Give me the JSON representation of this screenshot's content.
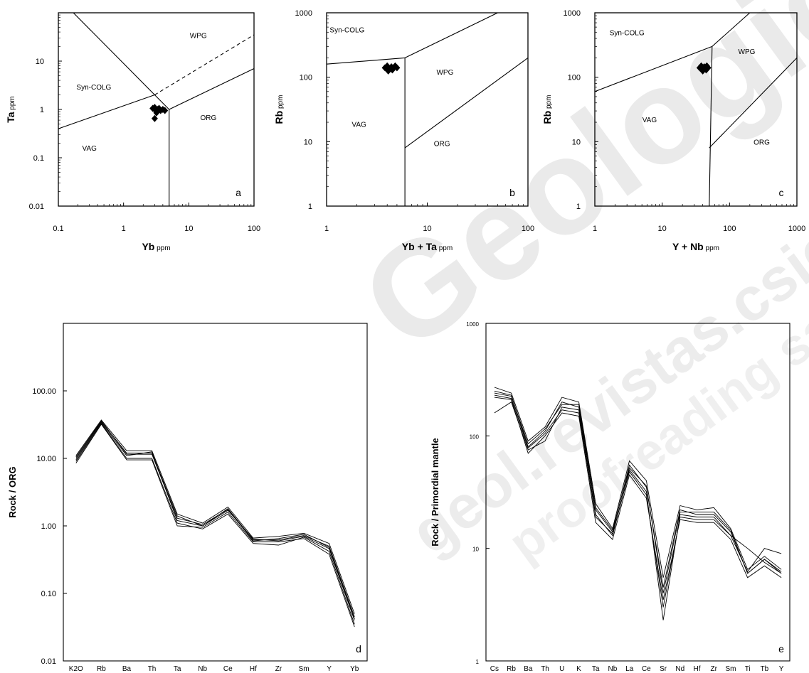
{
  "watermark": {
    "line1": "Geologica",
    "line2": "geol.revistas.csic.es",
    "line3": "proofreading sample",
    "color": "#000000"
  },
  "chart_data": [
    {
      "panel": "a",
      "type": "scatter",
      "xlabel": "Yb",
      "xunit": "ppm",
      "ylabel": "Ta",
      "yunit": "ppm",
      "xscale": "log",
      "yscale": "log",
      "xlim": [
        0.1,
        100
      ],
      "ylim": [
        0.01,
        100
      ],
      "xticks": [
        0.1,
        1,
        10,
        100
      ],
      "xtick_labels": [
        "0.1",
        "1",
        "10",
        "100"
      ],
      "yticks": [
        0.01,
        0.1,
        1,
        10
      ],
      "ytick_labels": [
        "0.01",
        "0.1",
        "1",
        "10"
      ],
      "grid": false,
      "fields": [
        "WPG",
        "Syn-COLG",
        "VAG",
        "ORG"
      ],
      "field_positions": [
        [
          14,
          30
        ],
        [
          0.35,
          2.6
        ],
        [
          0.3,
          0.14
        ],
        [
          20,
          0.6
        ]
      ],
      "boundaries": [
        {
          "points": [
            [
              0.17,
              100
            ],
            [
              3,
              2
            ]
          ],
          "style": "solid"
        },
        {
          "points": [
            [
              0.1,
              0.4
            ],
            [
              3,
              2
            ]
          ],
          "style": "solid"
        },
        {
          "points": [
            [
              3,
              2
            ],
            [
              5,
              1
            ]
          ],
          "style": "solid"
        },
        {
          "points": [
            [
              3,
              2
            ],
            [
              100,
              35
            ]
          ],
          "style": "dashed"
        },
        {
          "points": [
            [
              5,
              1
            ],
            [
              100,
              7
            ]
          ],
          "style": "solid"
        },
        {
          "points": [
            [
              5,
              1
            ],
            [
              5,
              0.01
            ]
          ],
          "style": "solid"
        }
      ],
      "points": [
        [
          2.8,
          1.05
        ],
        [
          3.0,
          1.1
        ],
        [
          3.1,
          0.95
        ],
        [
          3.3,
          1.0
        ],
        [
          3.5,
          1.05
        ],
        [
          3.7,
          0.95
        ],
        [
          4.0,
          1.0
        ],
        [
          4.3,
          0.95
        ],
        [
          3.2,
          0.85
        ],
        [
          3.0,
          0.65
        ]
      ],
      "label": "a"
    },
    {
      "panel": "b",
      "type": "scatter",
      "xlabel": "Yb + Ta",
      "xunit": "ppm",
      "ylabel": "Rb",
      "yunit": "ppm",
      "xscale": "log",
      "yscale": "log",
      "xlim": [
        1,
        100
      ],
      "ylim": [
        1,
        1000
      ],
      "xticks": [
        1,
        10,
        100
      ],
      "xtick_labels": [
        "1",
        "10",
        "100"
      ],
      "yticks": [
        1,
        10,
        100,
        1000
      ],
      "ytick_labels": [
        "1",
        "10",
        "100",
        "1000"
      ],
      "grid": false,
      "fields": [
        "Syn-COLG",
        "WPG",
        "VAG",
        "ORG"
      ],
      "field_positions": [
        [
          1.6,
          500
        ],
        [
          15,
          110
        ],
        [
          2.1,
          17
        ],
        [
          14,
          8.5
        ]
      ],
      "boundaries": [
        {
          "points": [
            [
              1,
              160
            ],
            [
              6,
              200
            ]
          ],
          "style": "solid"
        },
        {
          "points": [
            [
              6,
              200
            ],
            [
              50,
              1000
            ]
          ],
          "style": "solid"
        },
        {
          "points": [
            [
              6,
              200
            ],
            [
              6,
              1
            ]
          ],
          "style": "solid"
        },
        {
          "points": [
            [
              6,
              8
            ],
            [
              100,
              200
            ]
          ],
          "style": "solid"
        }
      ],
      "points": [
        [
          3.8,
          140
        ],
        [
          4.0,
          150
        ],
        [
          4.2,
          135
        ],
        [
          4.4,
          145
        ],
        [
          4.6,
          140
        ],
        [
          4.8,
          150
        ],
        [
          5.0,
          140
        ],
        [
          4.1,
          125
        ],
        [
          4.5,
          130
        ]
      ],
      "label": "b"
    },
    {
      "panel": "c",
      "type": "scatter",
      "xlabel": "Y + Nb",
      "xunit": "ppm",
      "ylabel": "Rb",
      "yunit": "ppm",
      "xscale": "log",
      "yscale": "log",
      "xlim": [
        1,
        1000
      ],
      "ylim": [
        1,
        1000
      ],
      "xticks": [
        1,
        10,
        100,
        1000
      ],
      "xtick_labels": [
        "1",
        "10",
        "100",
        "1000"
      ],
      "yticks": [
        1,
        10,
        100,
        1000
      ],
      "ytick_labels": [
        "1",
        "10",
        "100",
        "1000"
      ],
      "grid": false,
      "fields": [
        "Syn-COLG",
        "WPG",
        "VAG",
        "ORG"
      ],
      "field_positions": [
        [
          3,
          450
        ],
        [
          180,
          230
        ],
        [
          6.5,
          20
        ],
        [
          300,
          9
        ]
      ],
      "boundaries": [
        {
          "points": [
            [
              1,
              60
            ],
            [
              55,
              300
            ]
          ],
          "style": "solid"
        },
        {
          "points": [
            [
              55,
              300
            ],
            [
              200,
              1000
            ]
          ],
          "style": "solid"
        },
        {
          "points": [
            [
              55,
              300
            ],
            [
              50,
              1
            ]
          ],
          "style": "solid"
        },
        {
          "points": [
            [
              50,
              8
            ],
            [
              1000,
              200
            ]
          ],
          "style": "solid"
        }
      ],
      "points": [
        [
          36,
          140
        ],
        [
          38,
          150
        ],
        [
          40,
          135
        ],
        [
          42,
          145
        ],
        [
          44,
          140
        ],
        [
          46,
          150
        ],
        [
          48,
          140
        ],
        [
          40,
          125
        ],
        [
          45,
          130
        ]
      ],
      "label": "c"
    },
    {
      "panel": "d",
      "type": "line",
      "ylabel": "Rock / ORG",
      "yscale": "log",
      "ylim": [
        0.01,
        1000
      ],
      "yticks": [
        0.01,
        0.1,
        1,
        10,
        100
      ],
      "ytick_labels": [
        "0.01",
        "0.10",
        "1.00",
        "10.00",
        "100.00"
      ],
      "categories": [
        "K2O",
        "Rb",
        "Ba",
        "Th",
        "Ta",
        "Nb",
        "Ce",
        "Hf",
        "Zr",
        "Sm",
        "Y",
        "Yb"
      ],
      "grid": false,
      "series": [
        {
          "values": [
            10,
            35,
            12,
            12,
            1.4,
            1.0,
            1.8,
            0.62,
            0.62,
            0.72,
            0.5,
            0.045
          ]
        },
        {
          "values": [
            9,
            33,
            10,
            10,
            1.1,
            0.9,
            1.5,
            0.55,
            0.52,
            0.68,
            0.42,
            0.035
          ]
        },
        {
          "values": [
            11,
            37,
            13,
            13,
            1.5,
            1.1,
            1.9,
            0.66,
            0.7,
            0.78,
            0.55,
            0.05
          ]
        },
        {
          "values": [
            8.5,
            32,
            9.5,
            9.5,
            1.0,
            0.95,
            1.6,
            0.58,
            0.58,
            0.65,
            0.38,
            0.032
          ]
        },
        {
          "values": [
            10.5,
            36,
            11.5,
            11.5,
            1.3,
            1.05,
            1.75,
            0.6,
            0.65,
            0.75,
            0.48,
            0.042
          ]
        },
        {
          "values": [
            9.5,
            34,
            11,
            12.5,
            1.2,
            1.0,
            1.7,
            0.64,
            0.6,
            0.7,
            0.46,
            0.04
          ]
        }
      ],
      "label": "d"
    },
    {
      "panel": "e",
      "type": "line",
      "ylabel": "Rock / Primordial mantle",
      "yscale": "log",
      "ylim": [
        1,
        1000
      ],
      "yticks": [
        1,
        10,
        100,
        1000
      ],
      "ytick_labels": [
        "1",
        "10",
        "100",
        "1000"
      ],
      "categories": [
        "Cs",
        "Rb",
        "Ba",
        "Th",
        "U",
        "K",
        "Ta",
        "Nb",
        "La",
        "Ce",
        "Sr",
        "Nd",
        "Hf",
        "Zr",
        "Sm",
        "Ti",
        "Tb",
        "Y"
      ],
      "grid": false,
      "series": [
        {
          "values": [
            250,
            230,
            80,
            110,
            200,
            180,
            22,
            14,
            55,
            35,
            4.5,
            22,
            20,
            20,
            14,
            6,
            8,
            6
          ]
        },
        {
          "values": [
            220,
            210,
            70,
            100,
            160,
            150,
            17,
            12,
            45,
            28,
            3.5,
            18,
            17,
            17,
            12,
            5.5,
            7,
            5.5
          ]
        },
        {
          "values": [
            270,
            240,
            90,
            120,
            220,
            200,
            25,
            15,
            60,
            40,
            5.5,
            24,
            22,
            23,
            15,
            6.5,
            8.5,
            6.5
          ]
        },
        {
          "values": [
            160,
            200,
            75,
            90,
            180,
            170,
            20,
            13,
            50,
            32,
            2.3,
            20,
            19,
            19,
            13,
            6.2,
            10,
            9
          ]
        },
        {
          "values": [
            240,
            225,
            85,
            115,
            190,
            190,
            23,
            14.5,
            52,
            36,
            4,
            21,
            21,
            21,
            14.5,
            6,
            8,
            6.2
          ]
        },
        {
          "values": [
            230,
            215,
            78,
            105,
            170,
            160,
            19,
            13.5,
            48,
            30,
            3,
            19,
            18,
            18,
            13,
            10,
            7.5,
            6
          ]
        }
      ],
      "label": "e"
    }
  ]
}
